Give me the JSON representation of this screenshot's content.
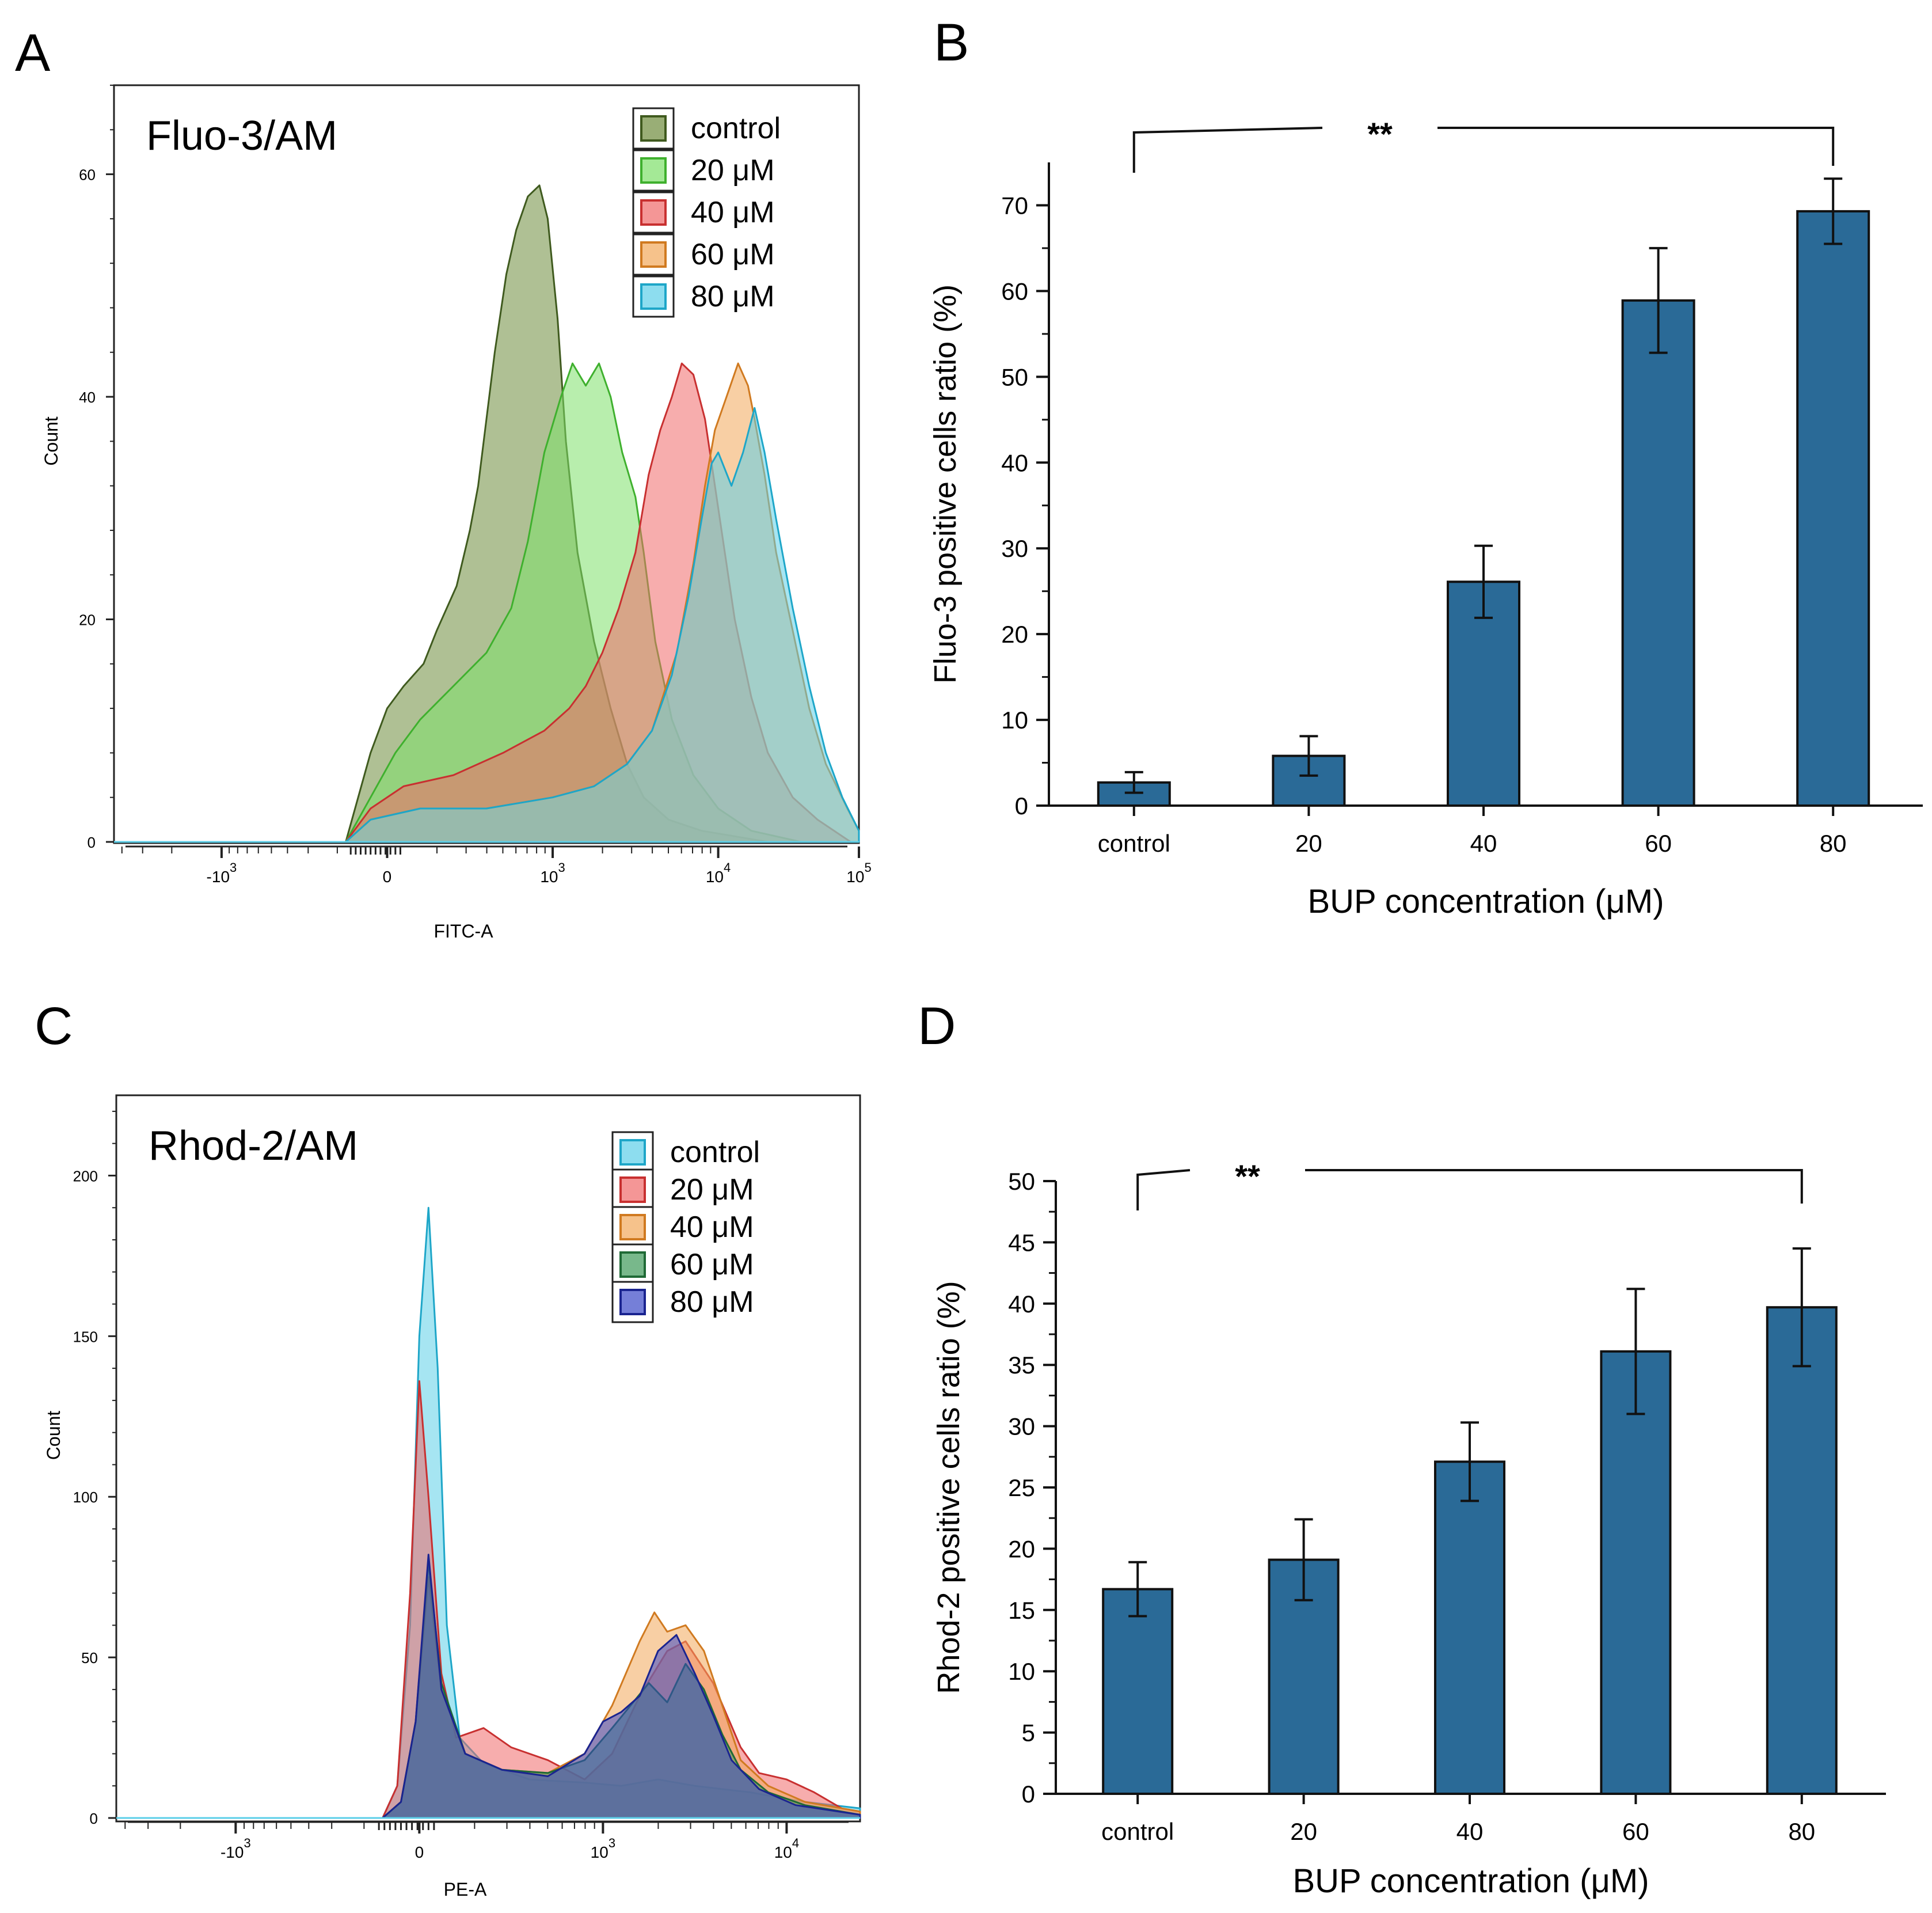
{
  "panels": {
    "a": {
      "letter": "A"
    },
    "b": {
      "letter": "B"
    },
    "c": {
      "letter": "C"
    },
    "d": {
      "letter": "D"
    }
  },
  "chart_data": [
    {
      "id": "A",
      "type": "area",
      "title": "Fluo-3/AM",
      "xlabel": "FITC-A",
      "ylabel": "Count",
      "ylim": [
        0,
        68
      ],
      "yticks": [
        {
          "v": 0,
          "label": "0"
        },
        {
          "v": 20,
          "label": "20"
        },
        {
          "v": 40,
          "label": "40"
        },
        {
          "v": 60,
          "label": "60"
        }
      ],
      "xticks": [
        {
          "v": -1.0,
          "base": "-10",
          "exp": "3"
        },
        {
          "v": 0.0,
          "base": "0",
          "exp": ""
        },
        {
          "v": 1.0,
          "base": "10",
          "exp": "3"
        },
        {
          "v": 2.0,
          "base": "10",
          "exp": "4"
        },
        {
          "v": 2.85,
          "base": "10",
          "exp": "5"
        }
      ],
      "xlim": [
        -1.65,
        2.85
      ],
      "legend": "top-right",
      "series": [
        {
          "name": "control",
          "fill": "#6e8c3c",
          "stroke": "#3f5a1e",
          "points": [
            [
              -0.25,
              0
            ],
            [
              -0.1,
              8
            ],
            [
              0.0,
              12
            ],
            [
              0.1,
              14
            ],
            [
              0.22,
              16
            ],
            [
              0.3,
              19
            ],
            [
              0.42,
              23
            ],
            [
              0.5,
              28
            ],
            [
              0.55,
              32
            ],
            [
              0.6,
              38
            ],
            [
              0.65,
              44
            ],
            [
              0.72,
              51
            ],
            [
              0.78,
              55
            ],
            [
              0.85,
              58
            ],
            [
              0.92,
              59
            ],
            [
              0.97,
              56
            ],
            [
              1.03,
              47
            ],
            [
              1.08,
              36
            ],
            [
              1.15,
              26
            ],
            [
              1.25,
              18
            ],
            [
              1.35,
              12
            ],
            [
              1.45,
              7
            ],
            [
              1.55,
              4
            ],
            [
              1.7,
              2
            ],
            [
              1.9,
              1
            ],
            [
              2.1,
              0.5
            ],
            [
              2.3,
              0
            ]
          ]
        },
        {
          "name": "20 μM",
          "fill": "#7ee06a",
          "stroke": "#3fb02e",
          "points": [
            [
              -0.25,
              0
            ],
            [
              -0.1,
              4
            ],
            [
              0.05,
              8
            ],
            [
              0.2,
              11
            ],
            [
              0.4,
              14
            ],
            [
              0.6,
              17
            ],
            [
              0.75,
              21
            ],
            [
              0.85,
              27
            ],
            [
              0.95,
              35
            ],
            [
              1.05,
              40
            ],
            [
              1.12,
              43
            ],
            [
              1.2,
              41
            ],
            [
              1.28,
              43
            ],
            [
              1.35,
              40
            ],
            [
              1.42,
              35
            ],
            [
              1.5,
              31
            ],
            [
              1.55,
              26
            ],
            [
              1.62,
              18
            ],
            [
              1.72,
              11
            ],
            [
              1.85,
              6
            ],
            [
              2.0,
              3
            ],
            [
              2.2,
              1
            ],
            [
              2.5,
              0
            ]
          ]
        },
        {
          "name": "40 μM",
          "fill": "#f06a6a",
          "stroke": "#c83030",
          "points": [
            [
              -0.25,
              0
            ],
            [
              -0.1,
              3
            ],
            [
              0.1,
              5
            ],
            [
              0.4,
              6
            ],
            [
              0.7,
              8
            ],
            [
              0.95,
              10
            ],
            [
              1.1,
              12
            ],
            [
              1.2,
              14
            ],
            [
              1.3,
              17
            ],
            [
              1.4,
              21
            ],
            [
              1.5,
              26
            ],
            [
              1.58,
              33
            ],
            [
              1.65,
              37
            ],
            [
              1.72,
              40
            ],
            [
              1.78,
              43
            ],
            [
              1.85,
              42
            ],
            [
              1.92,
              38
            ],
            [
              1.97,
              33
            ],
            [
              2.03,
              27
            ],
            [
              2.1,
              20
            ],
            [
              2.2,
              13
            ],
            [
              2.3,
              8
            ],
            [
              2.45,
              4
            ],
            [
              2.6,
              2
            ],
            [
              2.8,
              0
            ]
          ]
        },
        {
          "name": "60 μM",
          "fill": "#f2a85a",
          "stroke": "#d07a20",
          "points": [
            [
              -0.25,
              0
            ],
            [
              -0.1,
              2
            ],
            [
              0.2,
              3
            ],
            [
              0.6,
              3
            ],
            [
              1.0,
              4
            ],
            [
              1.25,
              5
            ],
            [
              1.45,
              7
            ],
            [
              1.6,
              10
            ],
            [
              1.75,
              17
            ],
            [
              1.85,
              25
            ],
            [
              1.92,
              32
            ],
            [
              1.98,
              37
            ],
            [
              2.05,
              40
            ],
            [
              2.12,
              43
            ],
            [
              2.18,
              41
            ],
            [
              2.22,
              38
            ],
            [
              2.28,
              33
            ],
            [
              2.35,
              26
            ],
            [
              2.45,
              19
            ],
            [
              2.55,
              12
            ],
            [
              2.65,
              7
            ],
            [
              2.78,
              3
            ],
            [
              2.85,
              1
            ]
          ]
        },
        {
          "name": "80 μM",
          "fill": "#5ccfe8",
          "stroke": "#1ea6c8",
          "points": [
            [
              -0.25,
              0
            ],
            [
              -0.1,
              2
            ],
            [
              0.2,
              3
            ],
            [
              0.6,
              3
            ],
            [
              1.0,
              4
            ],
            [
              1.25,
              5
            ],
            [
              1.45,
              7
            ],
            [
              1.6,
              10
            ],
            [
              1.72,
              15
            ],
            [
              1.82,
              22
            ],
            [
              1.9,
              29
            ],
            [
              1.96,
              34
            ],
            [
              2.0,
              35
            ],
            [
              2.08,
              32
            ],
            [
              2.15,
              35
            ],
            [
              2.22,
              39
            ],
            [
              2.28,
              35
            ],
            [
              2.35,
              29
            ],
            [
              2.45,
              21
            ],
            [
              2.55,
              14
            ],
            [
              2.65,
              8
            ],
            [
              2.75,
              4
            ],
            [
              2.85,
              1
            ]
          ]
        }
      ]
    },
    {
      "id": "B",
      "type": "bar",
      "title": "",
      "xlabel": "BUP concentration (μM)",
      "ylabel": "Fluo-3 positive cells ratio (%)",
      "categories": [
        "control",
        "20",
        "40",
        "60",
        "80"
      ],
      "values": [
        2.7,
        5.8,
        26.1,
        58.9,
        69.3
      ],
      "errors": [
        1.2,
        2.3,
        4.2,
        6.1,
        3.8
      ],
      "ylim": [
        0,
        75
      ],
      "yticks": [
        0,
        10,
        20,
        30,
        40,
        50,
        60,
        70
      ],
      "bar_color": "#2a6a97",
      "significance": {
        "label": "**",
        "from": 0,
        "to": 4
      }
    },
    {
      "id": "C",
      "type": "area",
      "title": "Rhod-2/AM",
      "xlabel": "PE-A",
      "ylabel": "Count",
      "ylim": [
        0,
        225
      ],
      "yticks": [
        {
          "v": 0,
          "label": "0"
        },
        {
          "v": 50,
          "label": "50"
        },
        {
          "v": 100,
          "label": "100"
        },
        {
          "v": 150,
          "label": "150"
        },
        {
          "v": 200,
          "label": "200"
        }
      ],
      "xticks": [
        {
          "v": -1.0,
          "base": "-10",
          "exp": "3"
        },
        {
          "v": 0.0,
          "base": "0",
          "exp": ""
        },
        {
          "v": 1.0,
          "base": "10",
          "exp": "3"
        },
        {
          "v": 2.0,
          "base": "10",
          "exp": "4"
        }
      ],
      "xlim": [
        -1.65,
        2.4
      ],
      "legend": "top-right",
      "series": [
        {
          "name": "control",
          "fill": "#5ccfe8",
          "stroke": "#1ea6c8",
          "points": [
            [
              -0.2,
              0
            ],
            [
              -0.12,
              10
            ],
            [
              -0.05,
              60
            ],
            [
              0.0,
              150
            ],
            [
              0.05,
              190
            ],
            [
              0.1,
              140
            ],
            [
              0.15,
              60
            ],
            [
              0.22,
              25
            ],
            [
              0.35,
              17
            ],
            [
              0.6,
              12
            ],
            [
              0.9,
              11
            ],
            [
              1.1,
              10
            ],
            [
              1.3,
              12
            ],
            [
              1.5,
              10
            ],
            [
              1.8,
              8
            ],
            [
              2.1,
              5
            ],
            [
              2.4,
              3
            ]
          ]
        },
        {
          "name": "20 μM",
          "fill": "#f06a6a",
          "stroke": "#c83030",
          "points": [
            [
              -0.2,
              0
            ],
            [
              -0.12,
              10
            ],
            [
              -0.05,
              70
            ],
            [
              0.0,
              136
            ],
            [
              0.05,
              100
            ],
            [
              0.12,
              45
            ],
            [
              0.2,
              25
            ],
            [
              0.35,
              28
            ],
            [
              0.5,
              22
            ],
            [
              0.7,
              18
            ],
            [
              0.9,
              12
            ],
            [
              1.05,
              20
            ],
            [
              1.2,
              38
            ],
            [
              1.35,
              52
            ],
            [
              1.45,
              55
            ],
            [
              1.6,
              42
            ],
            [
              1.75,
              22
            ],
            [
              1.85,
              14
            ],
            [
              2.0,
              12
            ],
            [
              2.15,
              8
            ],
            [
              2.3,
              3
            ],
            [
              2.4,
              2
            ]
          ]
        },
        {
          "name": "40 μM",
          "fill": "#f2a85a",
          "stroke": "#d07a20",
          "points": [
            [
              -0.2,
              0
            ],
            [
              -0.1,
              5
            ],
            [
              -0.02,
              30
            ],
            [
              0.05,
              75
            ],
            [
              0.12,
              40
            ],
            [
              0.25,
              20
            ],
            [
              0.45,
              15
            ],
            [
              0.7,
              14
            ],
            [
              0.9,
              20
            ],
            [
              1.05,
              35
            ],
            [
              1.2,
              55
            ],
            [
              1.28,
              64
            ],
            [
              1.35,
              58
            ],
            [
              1.45,
              60
            ],
            [
              1.55,
              52
            ],
            [
              1.65,
              35
            ],
            [
              1.75,
              18
            ],
            [
              1.9,
              10
            ],
            [
              2.1,
              5
            ],
            [
              2.4,
              2
            ]
          ]
        },
        {
          "name": "60 μM",
          "fill": "#3e9a5a",
          "stroke": "#1f6a36",
          "points": [
            [
              -0.2,
              0
            ],
            [
              -0.1,
              5
            ],
            [
              -0.02,
              30
            ],
            [
              0.05,
              80
            ],
            [
              0.12,
              42
            ],
            [
              0.25,
              20
            ],
            [
              0.45,
              15
            ],
            [
              0.7,
              14
            ],
            [
              0.9,
              18
            ],
            [
              1.05,
              28
            ],
            [
              1.15,
              35
            ],
            [
              1.25,
              42
            ],
            [
              1.35,
              36
            ],
            [
              1.45,
              48
            ],
            [
              1.55,
              40
            ],
            [
              1.65,
              26
            ],
            [
              1.75,
              15
            ],
            [
              1.9,
              8
            ],
            [
              2.1,
              4
            ],
            [
              2.4,
              1
            ]
          ]
        },
        {
          "name": "80 μM",
          "fill": "#3a48c8",
          "stroke": "#1a2490",
          "points": [
            [
              -0.2,
              0
            ],
            [
              -0.1,
              5
            ],
            [
              -0.02,
              30
            ],
            [
              0.05,
              82
            ],
            [
              0.12,
              40
            ],
            [
              0.25,
              20
            ],
            [
              0.45,
              15
            ],
            [
              0.7,
              13
            ],
            [
              0.9,
              20
            ],
            [
              1.0,
              30
            ],
            [
              1.1,
              33
            ],
            [
              1.2,
              38
            ],
            [
              1.3,
              52
            ],
            [
              1.4,
              57
            ],
            [
              1.5,
              45
            ],
            [
              1.6,
              32
            ],
            [
              1.7,
              18
            ],
            [
              1.85,
              9
            ],
            [
              2.05,
              4
            ],
            [
              2.4,
              1
            ]
          ]
        }
      ]
    },
    {
      "id": "D",
      "type": "bar",
      "title": "",
      "xlabel": "BUP concentration (μM)",
      "ylabel": "Rhod-2 positive cells ratio (%)",
      "categories": [
        "control",
        "20",
        "40",
        "60",
        "80"
      ],
      "values": [
        16.7,
        19.1,
        27.1,
        36.1,
        39.7
      ],
      "errors": [
        2.2,
        3.3,
        3.2,
        5.1,
        4.8
      ],
      "ylim": [
        0,
        50
      ],
      "yticks": [
        0,
        5,
        10,
        15,
        20,
        25,
        30,
        35,
        40,
        45,
        50
      ],
      "bar_color": "#2a6a97",
      "significance": {
        "label": "**",
        "from": 0,
        "to": 4
      }
    }
  ]
}
